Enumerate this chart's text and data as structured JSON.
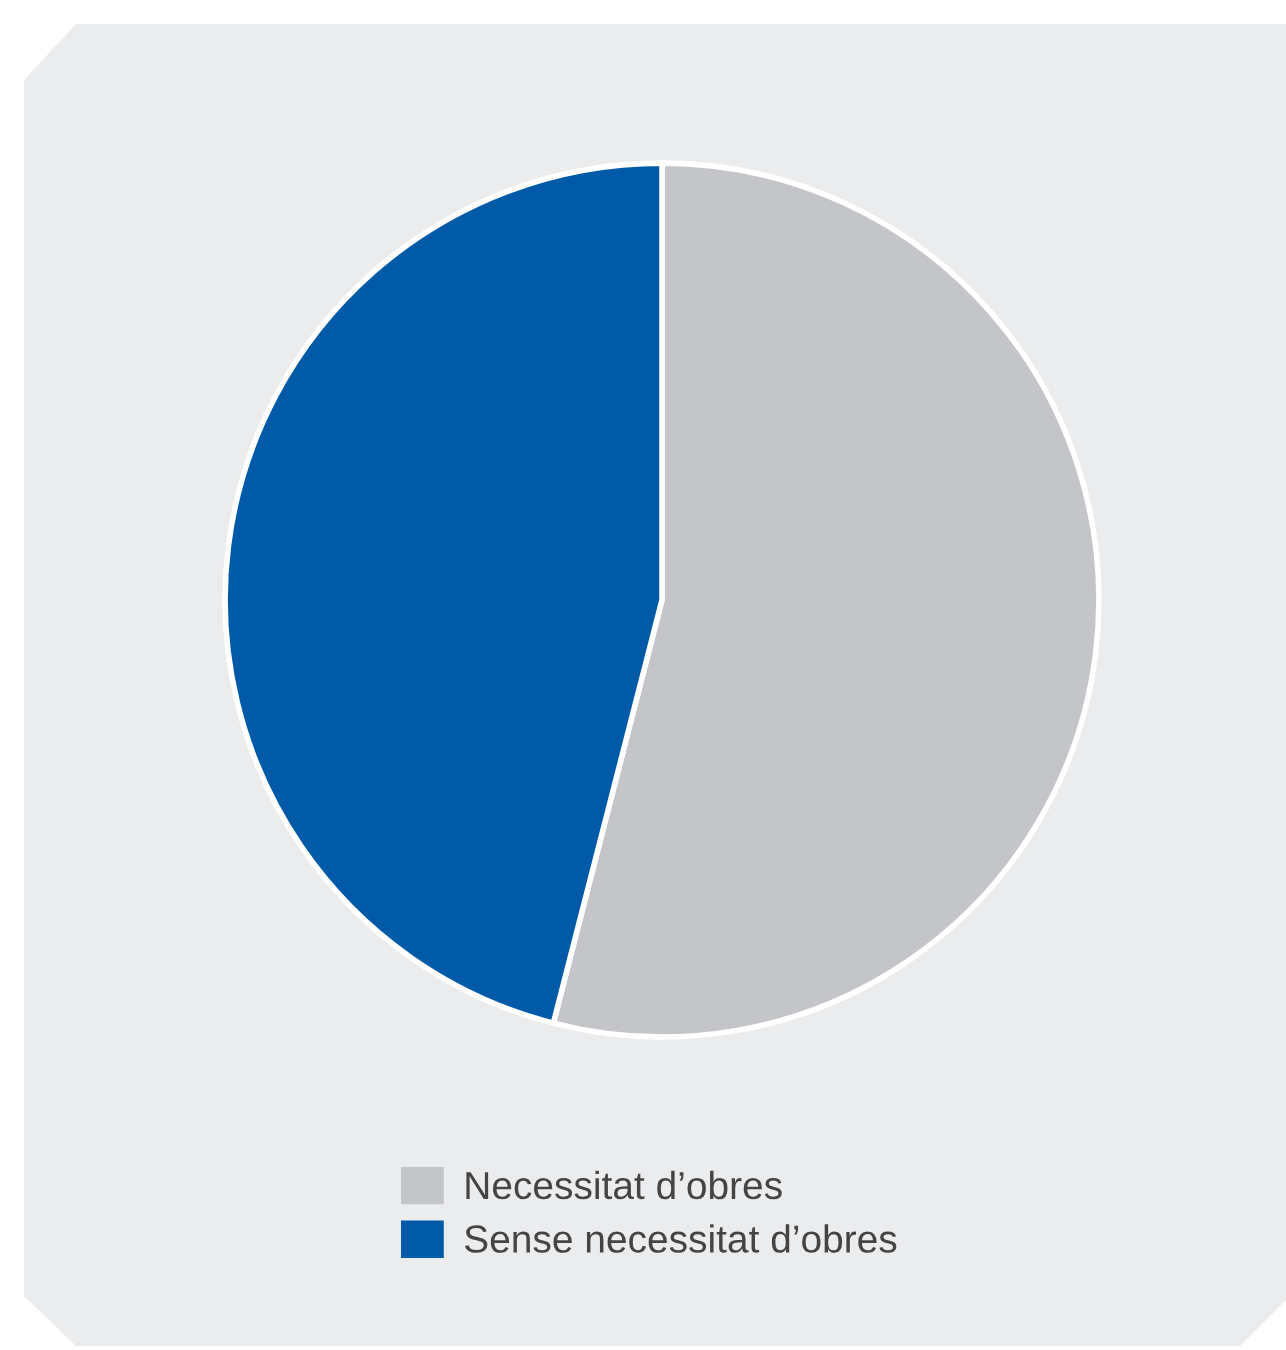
{
  "chart_data": {
    "type": "pie",
    "categories": [
      "Necessitat d’obres",
      "Sense necessitat d’obres"
    ],
    "values": [
      54,
      46
    ],
    "colors": [
      "#c4c5c9",
      "#005aa8"
    ],
    "legend": "bottom"
  }
}
